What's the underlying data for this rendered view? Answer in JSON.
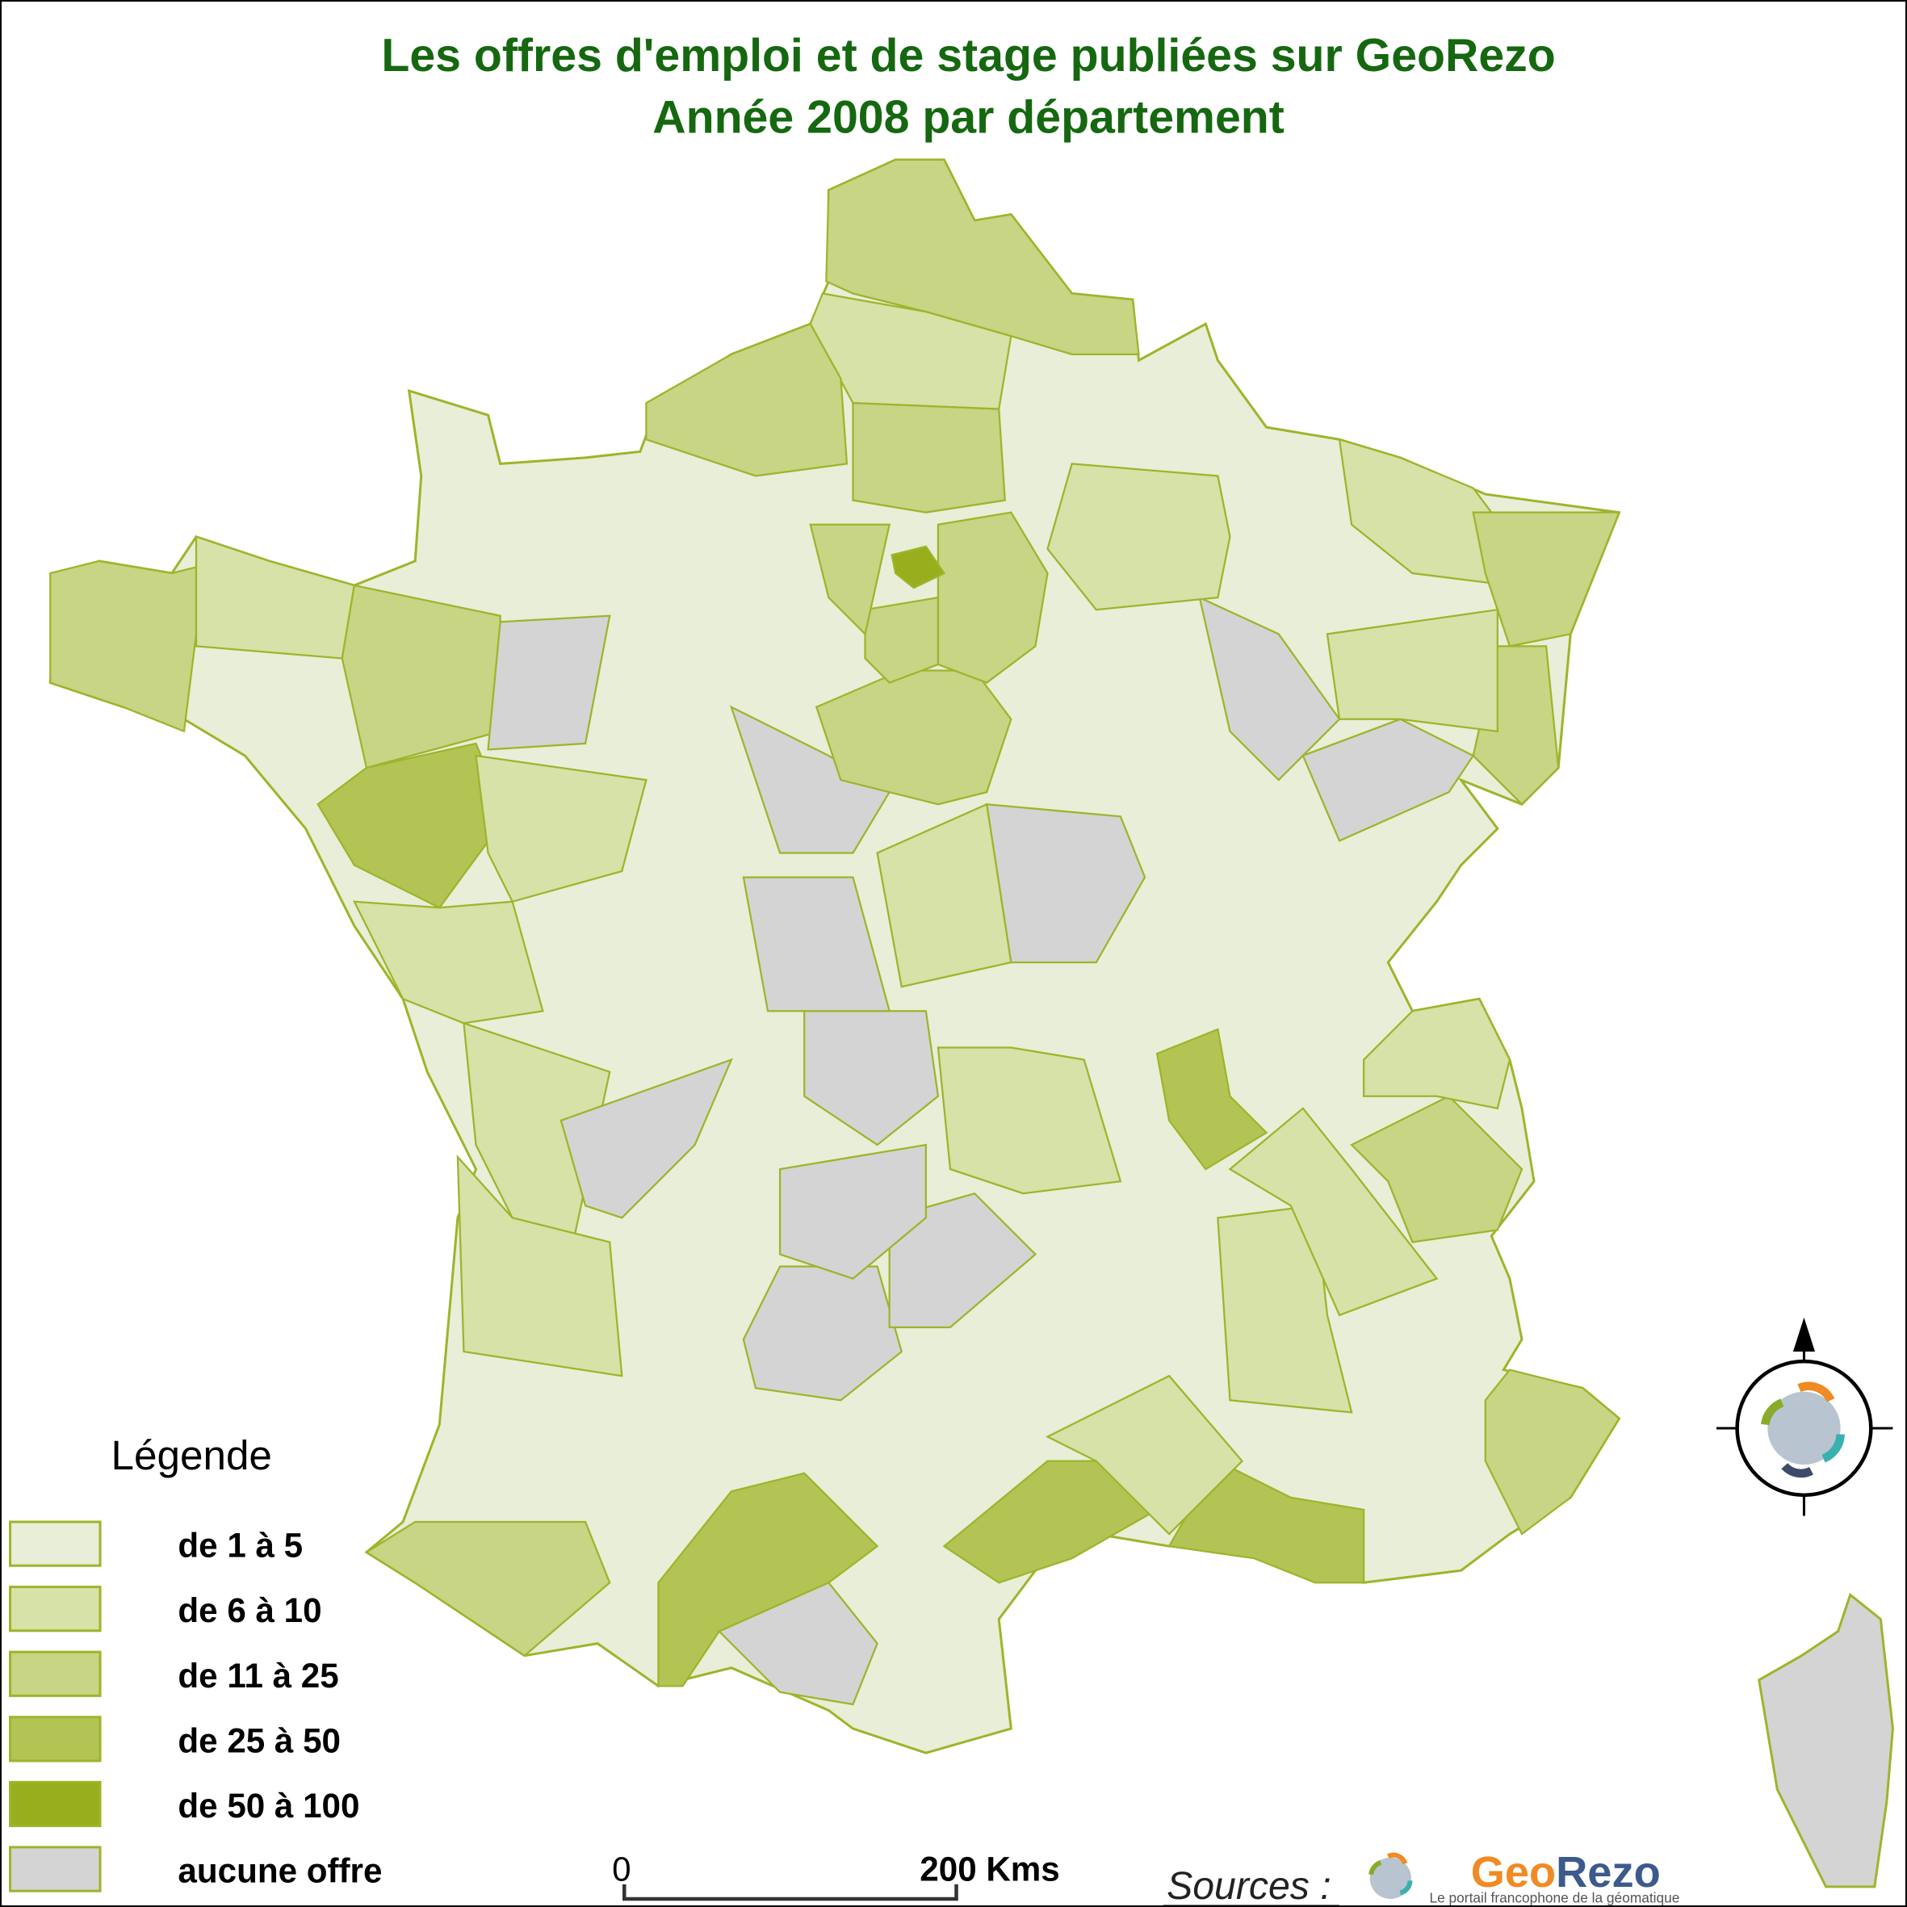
{
  "title": {
    "line1": "Les offres d'emploi et de stage publiées sur GeoRezo",
    "line2": "Année 2008 par département",
    "color": "#15680f"
  },
  "legend": {
    "heading": "Légende",
    "items": [
      {
        "label": "de 1 à 5",
        "color": "#e8eed8"
      },
      {
        "label": "de 6 à 10",
        "color": "#d6e2a8"
      },
      {
        "label": "de 11 à 25",
        "color": "#c7d585"
      },
      {
        "label": "de 25 à 50",
        "color": "#b3c454"
      },
      {
        "label": "de 50 à 100",
        "color": "#98ae1c"
      },
      {
        "label": "aucune offre",
        "color": "#d4d4d4"
      }
    ],
    "border_color": "#9db52a"
  },
  "scale_bar": {
    "start": "0",
    "end": "200 Kms"
  },
  "sources": {
    "label": "Sources :",
    "logo_text_geo": "Geo",
    "logo_text_rezo": "Rezo",
    "logo_tagline": "Le portail francophone de la géomatique"
  },
  "compass": {
    "icon": "north-arrow-compass-icon"
  }
}
